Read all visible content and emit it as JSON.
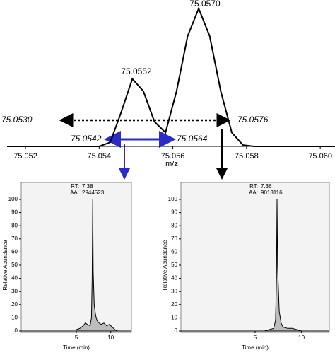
{
  "chart_data": [
    {
      "type": "line",
      "xlabel": "m/z",
      "annotations": [
        "75.0552",
        "75.0570",
        "75.0530",
        "75.0576",
        "75.0542",
        "75.0564"
      ],
      "xlim": [
        75.0515,
        75.0604
      ],
      "ylim": [
        0,
        100
      ],
      "xticks": [
        75.052,
        75.054,
        75.056,
        75.058,
        {
          "value": 75.06,
          "label": "75.060"
        }
      ],
      "series": [
        {
          "color": "#000000",
          "x": [
            75.0515,
            75.054,
            75.0543,
            75.0546,
            75.0549,
            75.0552,
            75.0555,
            75.0558,
            75.0561,
            75.0564,
            75.0567,
            75.057,
            75.0573,
            75.0576,
            75.0579,
            75.0582,
            75.0604
          ],
          "values": [
            0,
            0,
            3,
            25,
            49,
            40,
            18,
            10,
            40,
            80,
            100,
            80,
            40,
            10,
            1,
            0,
            0
          ]
        }
      ]
    },
    {
      "type": "line",
      "ylabel": "Relative Abundance",
      "xlabel": "Time (min)",
      "rt_label": "RT:",
      "rt": 7.38,
      "aa_label": "AA:",
      "aa": 2944523,
      "xlim": [
        -3,
        13
      ],
      "ylim": [
        0,
        100
      ],
      "xticks": [
        5,
        10
      ],
      "yticks": [
        0,
        10,
        20,
        30,
        40,
        50,
        60,
        70,
        80,
        90,
        100
      ],
      "series": [
        {
          "color": "#000000",
          "x": [
            5,
            5.5,
            6,
            6.3,
            6.6,
            7.0,
            7.2,
            7.3,
            7.38,
            7.45,
            7.6,
            7.8,
            8.0,
            8.3,
            8.6,
            9.0,
            9.4,
            9.8,
            10.2,
            10.6,
            11
          ],
          "values": [
            1,
            2,
            4,
            6,
            5,
            4,
            10,
            40,
            100,
            45,
            20,
            12,
            8,
            6,
            5,
            6,
            4,
            5,
            3,
            1,
            0
          ]
        }
      ]
    },
    {
      "type": "line",
      "ylabel": "Relative Abundance",
      "xlabel": "Time (min)",
      "rt_label": "RT:",
      "rt": 7.36,
      "aa_label": "AA:",
      "aa": 9013116,
      "xlim": [
        -3,
        13
      ],
      "ylim": [
        0,
        100
      ],
      "xticks": [
        5,
        10
      ],
      "yticks": [
        0,
        10,
        20,
        30,
        40,
        50,
        60,
        70,
        80,
        90,
        100
      ],
      "series": [
        {
          "color": "#000000",
          "x": [
            6,
            6.5,
            7.0,
            7.2,
            7.3,
            7.36,
            7.42,
            7.6,
            7.8,
            8.0,
            8.5,
            9.0,
            9.5,
            10
          ],
          "values": [
            0,
            1,
            2,
            8,
            40,
            100,
            50,
            15,
            6,
            3,
            2,
            2,
            1,
            0
          ]
        }
      ]
    }
  ]
}
